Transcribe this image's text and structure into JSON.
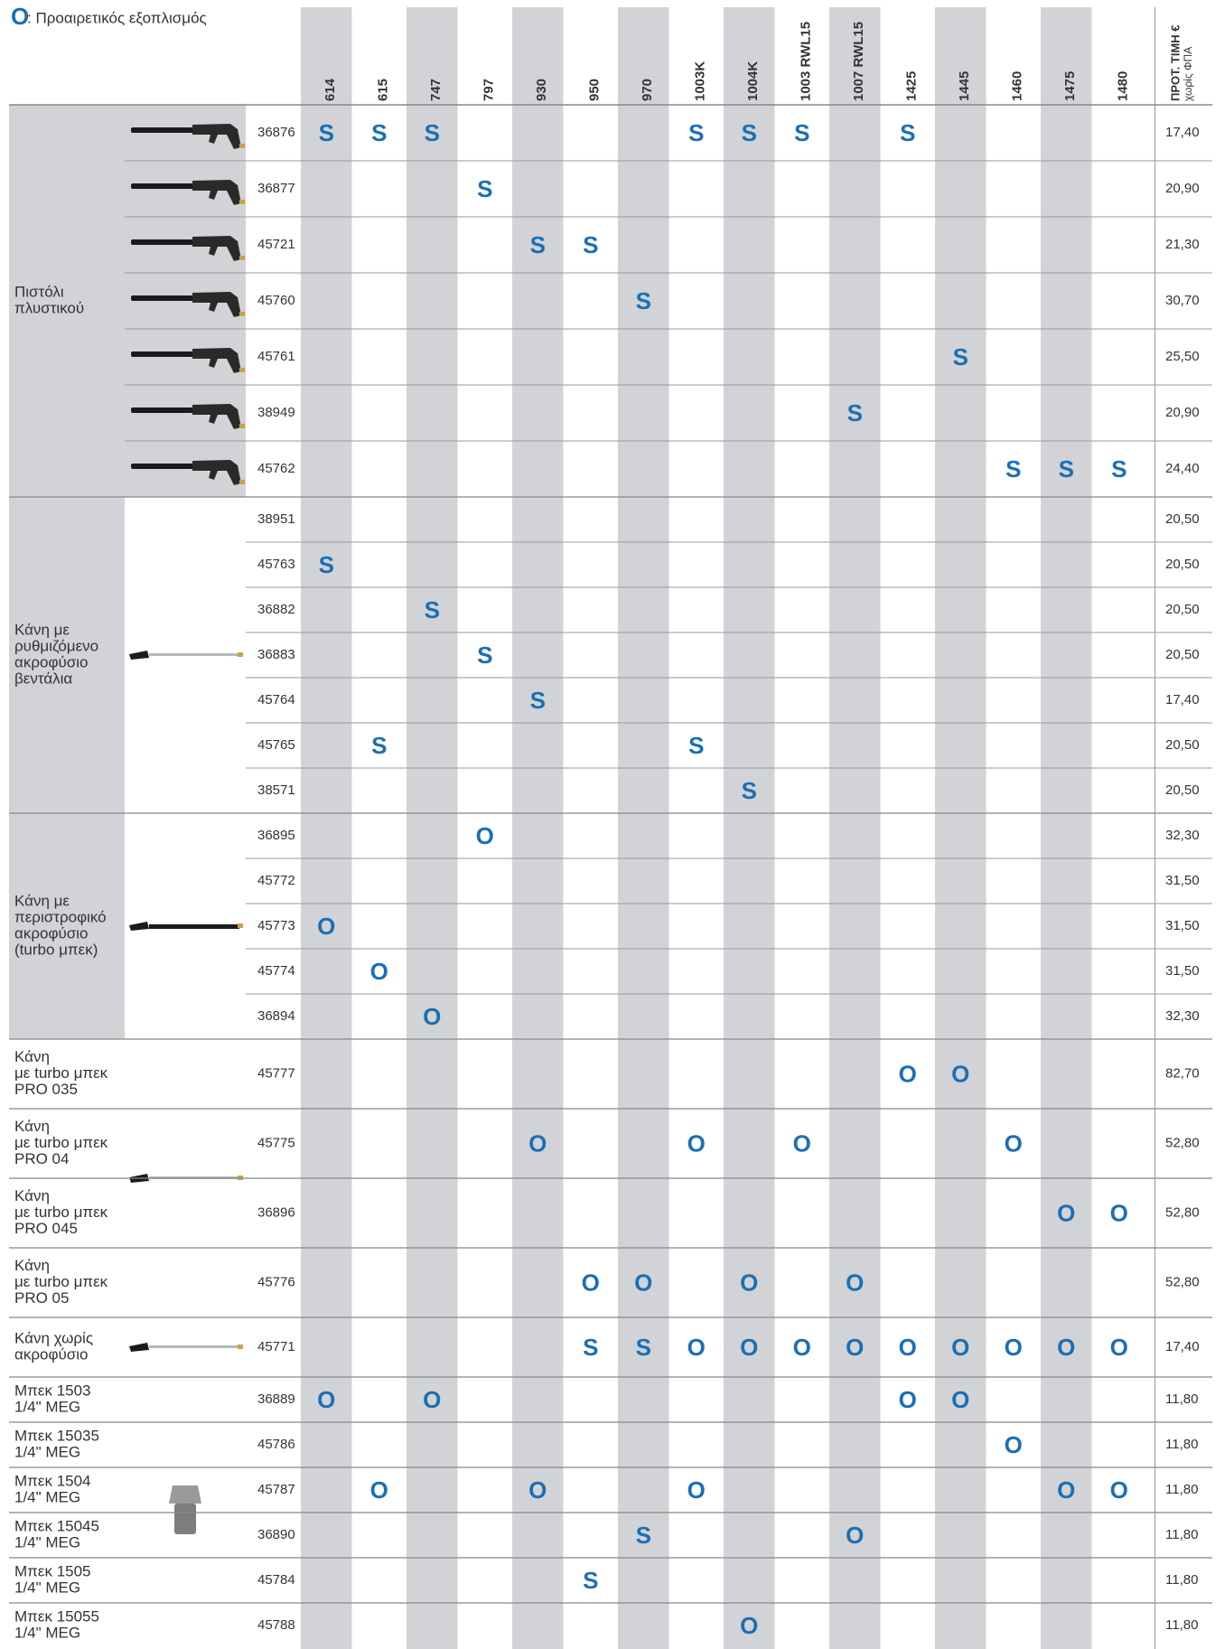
{
  "legend": {
    "symbol": "O",
    "text": ": Προαιρετικός εξοπλισμός"
  },
  "columns": [
    "614",
    "615",
    "747",
    "797",
    "930",
    "950",
    "970",
    "1003K",
    "1004K",
    "1003 RWL15",
    "1007 RWL15",
    "1425",
    "1445",
    "1460",
    "1475",
    "1480"
  ],
  "price_header": {
    "title": "ΠΡΟΤ. ΤΙΜΗ €",
    "subtitle": "χωρίς ΦΠΑ"
  },
  "groups": [
    {
      "label": [
        "Πιστόλι",
        "πλυστικού"
      ],
      "rows": [
        {
          "code": "36876",
          "marks": [
            "S",
            "S",
            "S",
            null,
            null,
            null,
            null,
            "S",
            "S",
            "S",
            null,
            "S",
            null,
            null,
            null,
            null
          ],
          "price": "17,40"
        },
        {
          "code": "36877",
          "marks": [
            null,
            null,
            null,
            "S",
            null,
            null,
            null,
            null,
            null,
            null,
            null,
            null,
            null,
            null,
            null,
            null
          ],
          "price": "20,90"
        },
        {
          "code": "45721",
          "marks": [
            null,
            null,
            null,
            null,
            "S",
            "S",
            null,
            null,
            null,
            null,
            null,
            null,
            null,
            null,
            null,
            null
          ],
          "price": "21,30"
        },
        {
          "code": "45760",
          "marks": [
            null,
            null,
            null,
            null,
            null,
            null,
            "S",
            null,
            null,
            null,
            null,
            null,
            null,
            null,
            null,
            null
          ],
          "price": "30,70"
        },
        {
          "code": "45761",
          "marks": [
            null,
            null,
            null,
            null,
            null,
            null,
            null,
            null,
            null,
            null,
            null,
            null,
            "S",
            null,
            null,
            null
          ],
          "price": "25,50"
        },
        {
          "code": "38949",
          "marks": [
            null,
            null,
            null,
            null,
            null,
            null,
            null,
            null,
            null,
            null,
            "S",
            null,
            null,
            null,
            null,
            null
          ],
          "price": "20,90"
        },
        {
          "code": "45762",
          "marks": [
            null,
            null,
            null,
            null,
            null,
            null,
            null,
            null,
            null,
            null,
            null,
            null,
            null,
            "S",
            "S",
            "S"
          ],
          "price": "24,40"
        }
      ]
    },
    {
      "label": [
        "Κάνη με",
        "ρυθμιζόμενο",
        "ακροφύσιο",
        "βεντάλια"
      ],
      "rows": [
        {
          "code": "38951",
          "marks": [
            null,
            null,
            null,
            null,
            null,
            null,
            null,
            null,
            null,
            null,
            null,
            null,
            null,
            null,
            null,
            null
          ],
          "price": "20,50"
        },
        {
          "code": "45763",
          "marks": [
            "S",
            null,
            null,
            null,
            null,
            null,
            null,
            null,
            null,
            null,
            null,
            null,
            null,
            null,
            null,
            null
          ],
          "price": "20,50"
        },
        {
          "code": "36882",
          "marks": [
            null,
            null,
            "S",
            null,
            null,
            null,
            null,
            null,
            null,
            null,
            null,
            null,
            null,
            null,
            null,
            null
          ],
          "price": "20,50"
        },
        {
          "code": "36883",
          "marks": [
            null,
            null,
            null,
            "S",
            null,
            null,
            null,
            null,
            null,
            null,
            null,
            null,
            null,
            null,
            null,
            null
          ],
          "price": "20,50"
        },
        {
          "code": "45764",
          "marks": [
            null,
            null,
            null,
            null,
            "S",
            null,
            null,
            null,
            null,
            null,
            null,
            null,
            null,
            null,
            null,
            null
          ],
          "price": "17,40"
        },
        {
          "code": "45765",
          "marks": [
            null,
            "S",
            null,
            null,
            null,
            null,
            null,
            "S",
            null,
            null,
            null,
            null,
            null,
            null,
            null,
            null
          ],
          "price": "20,50"
        },
        {
          "code": "38571",
          "marks": [
            null,
            null,
            null,
            null,
            null,
            null,
            null,
            null,
            "S",
            null,
            null,
            null,
            null,
            null,
            null,
            null
          ],
          "price": "20,50"
        }
      ]
    },
    {
      "label": [
        "Κάνη με",
        "περιστροφικό",
        "ακροφύσιο",
        "(turbo μπεκ)"
      ],
      "rows": [
        {
          "code": "36895",
          "marks": [
            null,
            null,
            null,
            "O",
            null,
            null,
            null,
            null,
            null,
            null,
            null,
            null,
            null,
            null,
            null,
            null
          ],
          "price": "32,30"
        },
        {
          "code": "45772",
          "marks": [
            null,
            null,
            null,
            null,
            null,
            null,
            null,
            null,
            null,
            null,
            null,
            null,
            null,
            null,
            null,
            null
          ],
          "price": "31,50"
        },
        {
          "code": "45773",
          "marks": [
            "O",
            null,
            null,
            null,
            null,
            null,
            null,
            null,
            null,
            null,
            null,
            null,
            null,
            null,
            null,
            null
          ],
          "price": "31,50"
        },
        {
          "code": "45774",
          "marks": [
            null,
            "O",
            null,
            null,
            null,
            null,
            null,
            null,
            null,
            null,
            null,
            null,
            null,
            null,
            null,
            null
          ],
          "price": "31,50"
        },
        {
          "code": "36894",
          "marks": [
            null,
            null,
            "O",
            null,
            null,
            null,
            null,
            null,
            null,
            null,
            null,
            null,
            null,
            null,
            null,
            null
          ],
          "price": "32,30"
        }
      ]
    },
    {
      "label": [
        "Κάνη",
        "με turbo μπεκ",
        "PRO 035"
      ],
      "rows": [
        {
          "code": "45777",
          "marks": [
            null,
            null,
            null,
            null,
            null,
            null,
            null,
            null,
            null,
            null,
            null,
            "O",
            "O",
            null,
            null,
            null
          ],
          "price": "82,70"
        }
      ]
    },
    {
      "label": [
        "Κάνη",
        "με turbo μπεκ",
        "PRO 04"
      ],
      "rows": [
        {
          "code": "45775",
          "marks": [
            null,
            null,
            null,
            null,
            "O",
            null,
            null,
            "O",
            null,
            "O",
            null,
            null,
            null,
            "O",
            null,
            null
          ],
          "price": "52,80"
        }
      ]
    },
    {
      "label": [
        "Κάνη",
        "με turbo μπεκ",
        "PRO 045"
      ],
      "rows": [
        {
          "code": "36896",
          "marks": [
            null,
            null,
            null,
            null,
            null,
            null,
            null,
            null,
            null,
            null,
            null,
            null,
            null,
            null,
            "O",
            "O"
          ],
          "price": "52,80"
        }
      ]
    },
    {
      "label": [
        "Κάνη",
        "με turbo μπεκ",
        "PRO 05"
      ],
      "rows": [
        {
          "code": "45776",
          "marks": [
            null,
            null,
            null,
            null,
            null,
            "O",
            "O",
            null,
            "O",
            null,
            "O",
            null,
            null,
            null,
            null,
            null
          ],
          "price": "52,80"
        }
      ]
    },
    {
      "label": [
        "Κάνη χωρίς",
        "ακροφύσιο"
      ],
      "rows": [
        {
          "code": "45771",
          "marks": [
            null,
            null,
            null,
            null,
            null,
            "S",
            "S",
            "O",
            "O",
            "O",
            "O",
            "O",
            "O",
            "O",
            "O",
            "O"
          ],
          "price": "17,40"
        }
      ]
    },
    {
      "label": [
        "Μπεκ 1503",
        "1/4\" MEG"
      ],
      "rows": [
        {
          "code": "36889",
          "marks": [
            "O",
            null,
            "O",
            null,
            null,
            null,
            null,
            null,
            null,
            null,
            null,
            "O",
            "O",
            null,
            null,
            null
          ],
          "price": "11,80"
        }
      ]
    },
    {
      "label": [
        "Μπεκ 15035",
        "1/4\" MEG"
      ],
      "rows": [
        {
          "code": "45786",
          "marks": [
            null,
            null,
            null,
            null,
            null,
            null,
            null,
            null,
            null,
            null,
            null,
            null,
            null,
            "O",
            null,
            null
          ],
          "price": "11,80"
        }
      ]
    },
    {
      "label": [
        "Μπεκ 1504",
        "1/4\" MEG"
      ],
      "rows": [
        {
          "code": "45787",
          "marks": [
            null,
            "O",
            null,
            null,
            "O",
            null,
            null,
            "O",
            null,
            null,
            null,
            null,
            null,
            null,
            "O",
            "O"
          ],
          "price": "11,80"
        }
      ]
    },
    {
      "label": [
        "Μπεκ 15045",
        "1/4\" MEG"
      ],
      "rows": [
        {
          "code": "36890",
          "marks": [
            null,
            null,
            null,
            null,
            null,
            null,
            "S",
            null,
            null,
            null,
            "O",
            null,
            null,
            null,
            null,
            null
          ],
          "price": "11,80"
        }
      ]
    },
    {
      "label": [
        "Μπεκ 1505",
        "1/4\" MEG"
      ],
      "rows": [
        {
          "code": "45784",
          "marks": [
            null,
            null,
            null,
            null,
            null,
            "S",
            null,
            null,
            null,
            null,
            null,
            null,
            null,
            null,
            null,
            null
          ],
          "price": "11,80"
        }
      ]
    },
    {
      "label": [
        "Μπεκ 15055",
        "1/4\" MEG"
      ],
      "rows": [
        {
          "code": "45788",
          "marks": [
            null,
            null,
            null,
            null,
            null,
            null,
            null,
            null,
            "O",
            null,
            null,
            null,
            null,
            null,
            null,
            null
          ],
          "price": "11,80"
        }
      ]
    }
  ]
}
